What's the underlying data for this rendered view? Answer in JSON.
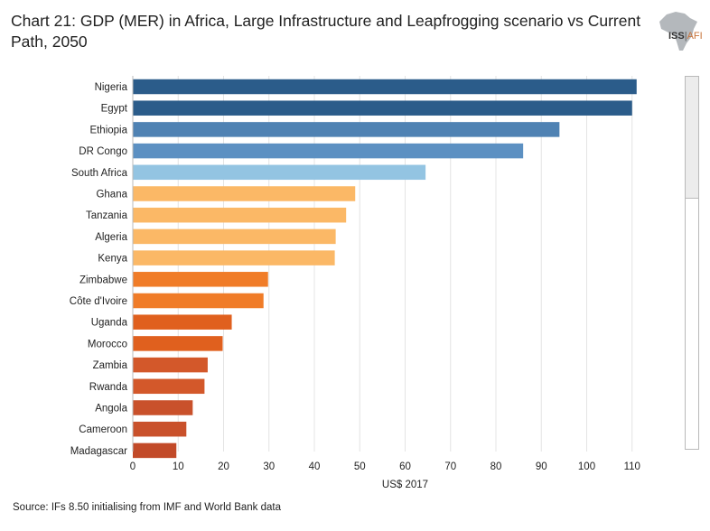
{
  "header": {
    "title": "Chart 21: GDP (MER) in Africa, Large Infrastructure and Leapfrogging scenario vs Current Path, 2050",
    "logo_iss": "ISS",
    "logo_afi": "AFI"
  },
  "footer": {
    "source": "Source: IFs 8.50 initialising from IMF and World Bank data"
  },
  "chart_data": {
    "type": "bar",
    "orientation": "horizontal",
    "title": "Chart 21: GDP (MER) in Africa, Large Infrastructure and Leapfrogging scenario vs Current Path, 2050",
    "xlabel": "US$ 2017",
    "ylabel": "",
    "xlim": [
      0,
      120
    ],
    "xticks": [
      0,
      10,
      20,
      30,
      40,
      50,
      60,
      70,
      80,
      90,
      100,
      110
    ],
    "grid": true,
    "categories": [
      "Nigeria",
      "Egypt",
      "Ethiopia",
      "DR Congo",
      "South Africa",
      "Ghana",
      "Tanzania",
      "Algeria",
      "Kenya",
      "Zimbabwe",
      "Côte d'Ivoire",
      "Uganda",
      "Morocco",
      "Zambia",
      "Rwanda",
      "Angola",
      "Cameroon",
      "Madagascar"
    ],
    "values": [
      111,
      110,
      94,
      86,
      64.5,
      49,
      47,
      44.7,
      44.5,
      29.8,
      28.8,
      21.8,
      19.8,
      16.5,
      15.8,
      13.2,
      11.8,
      9.6
    ],
    "colors": [
      "#2b5c8a",
      "#2b5c8a",
      "#4f82b3",
      "#5c90c2",
      "#93c4e2",
      "#fbb866",
      "#fbb866",
      "#fbb866",
      "#fbb866",
      "#f07c28",
      "#f07c28",
      "#e0601e",
      "#e0601e",
      "#d3582a",
      "#d3582a",
      "#c9512b",
      "#c9512b",
      "#c24a28"
    ]
  }
}
